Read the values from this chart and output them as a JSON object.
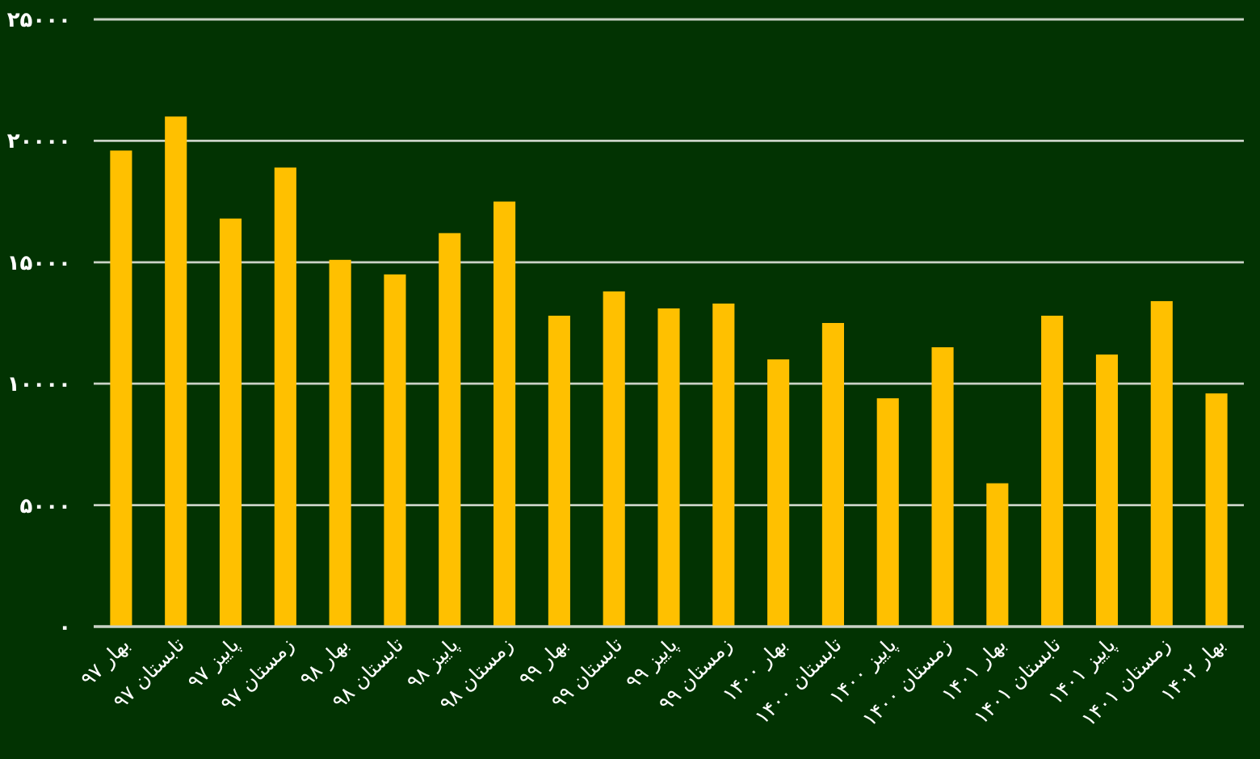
{
  "chart_data": {
    "type": "bar",
    "categories": [
      "بهار ۹۷",
      "تابستان ۹۷",
      "پاییز ۹۷",
      "زمستان ۹۷",
      "بهار ۹۸",
      "تابستان ۹۸",
      "پاییز ۹۸",
      "زمستان ۹۸",
      "بهار ۹۹",
      "تابستان ۹۹",
      "پاییز ۹۹",
      "زمستان ۹۹",
      "بهار ۱۴۰۰",
      "تابستان ۱۴۰۰",
      "پاییز ۱۴۰۰",
      "زمستان ۱۴۰۰",
      "بهار ۱۴۰۱",
      "تابستان ۱۴۰۱",
      "پاییز ۱۴۰۱",
      "زمستان ۱۴۰۱",
      "بهار ۱۴۰۲"
    ],
    "values": [
      19600,
      21000,
      16800,
      18900,
      15100,
      14500,
      16200,
      17500,
      12800,
      13800,
      13100,
      13300,
      11000,
      12500,
      9400,
      11500,
      5900,
      12800,
      11200,
      13400,
      9600
    ],
    "color": "#ffc000",
    "ylim": [
      0,
      25000
    ],
    "yticks": [
      {
        "value": 0,
        "label": "۰"
      },
      {
        "value": 5000,
        "label": "۵۰۰۰"
      },
      {
        "value": 10000,
        "label": "۱۰۰۰۰"
      },
      {
        "value": 15000,
        "label": "۱۵۰۰۰"
      },
      {
        "value": 20000,
        "label": "۲۰۰۰۰"
      },
      {
        "value": 25000,
        "label": "۲۵۰۰۰"
      }
    ],
    "grid": "y"
  }
}
